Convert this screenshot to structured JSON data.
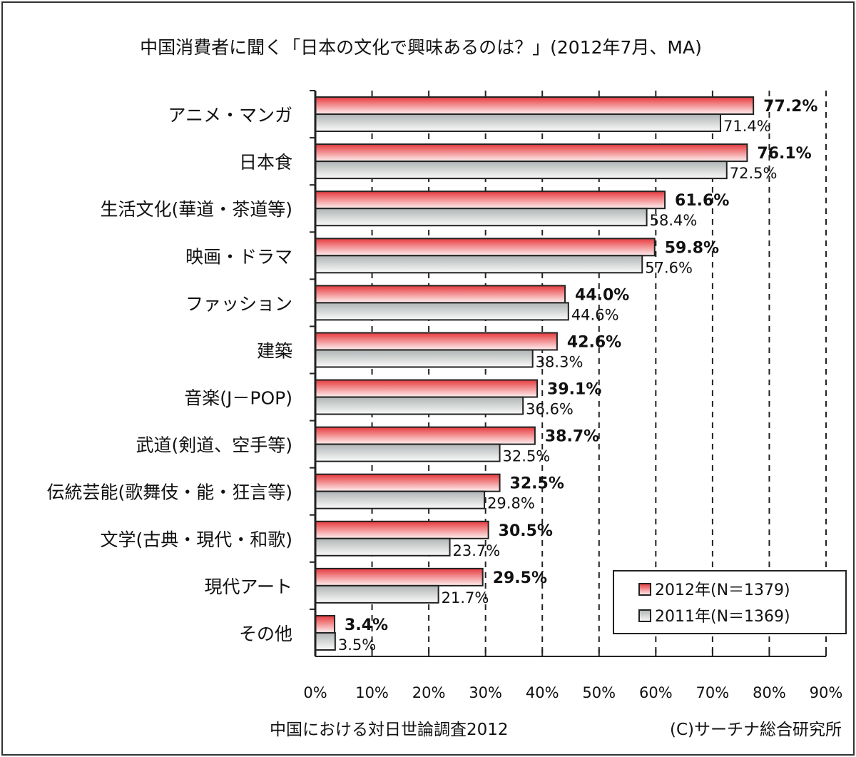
{
  "chart_data": {
    "type": "bar",
    "orientation": "horizontal",
    "title": "中国消費者に聞く「日本の文化で興味あるのは？」(2012年7月、MA)",
    "categories": [
      "アニメ・マンガ",
      "日本食",
      "生活文化(華道・茶道等)",
      "映画・ドラマ",
      "ファッション",
      "建築",
      "音楽(J－POP)",
      "武道(剣道、空手等)",
      "伝統芸能(歌舞伎・能・狂言等)",
      "文学(古典・現代・和歌)",
      "現代アート",
      "その他"
    ],
    "series": [
      {
        "name": "2012年(N＝1379)",
        "color": "#e8464a",
        "values": [
          77.2,
          76.1,
          61.6,
          59.8,
          44.0,
          42.6,
          39.1,
          38.7,
          32.5,
          30.5,
          29.5,
          3.4
        ]
      },
      {
        "name": "2011年(N＝1369)",
        "color": "#b8bcbc",
        "values": [
          71.4,
          72.5,
          58.4,
          57.6,
          44.6,
          38.3,
          36.6,
          32.5,
          29.8,
          23.7,
          21.7,
          3.5
        ]
      }
    ],
    "xlim": [
      0,
      90
    ],
    "xticks": [
      "0%",
      "10%",
      "20%",
      "30%",
      "40%",
      "50%",
      "60%",
      "70%",
      "80%",
      "90%"
    ],
    "grid": "vertical dashed",
    "legend": "bottom-right",
    "source": "中国における対日世論調査2012",
    "credit": "(C)サーチナ総合研究所"
  }
}
